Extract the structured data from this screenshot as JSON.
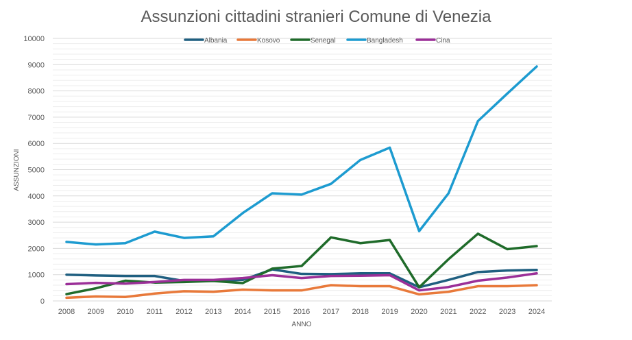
{
  "chart_data": {
    "type": "line",
    "title": "Assunzioni cittadini stranieri Comune di Venezia",
    "xlabel": "ANNO",
    "ylabel": "ASSUNZIONI",
    "ylim": [
      0,
      10000
    ],
    "y_major_step": 1000,
    "y_minor_step": 200,
    "grid": true,
    "legend_position": "top",
    "y_ticks": [
      "0",
      "1000",
      "2000",
      "3000",
      "4000",
      "5000",
      "6000",
      "7000",
      "8000",
      "9000",
      "10000"
    ],
    "categories": [
      "2008",
      "2009",
      "2010",
      "2011",
      "2012",
      "2013",
      "2014",
      "2015",
      "2016",
      "2017",
      "2018",
      "2019",
      "2020",
      "2021",
      "2022",
      "2023",
      "2024"
    ],
    "series": [
      {
        "name": "Albania",
        "color": "#1f5f80",
        "values": [
          1000,
          970,
          950,
          950,
          760,
          770,
          800,
          1200,
          1030,
          1020,
          1050,
          1050,
          520,
          800,
          1100,
          1160,
          1180
        ]
      },
      {
        "name": "Kosovo",
        "color": "#e8793a",
        "values": [
          120,
          170,
          150,
          280,
          370,
          350,
          430,
          400,
          400,
          600,
          560,
          560,
          250,
          350,
          560,
          560,
          600
        ]
      },
      {
        "name": "Senegal",
        "color": "#1f6b2a",
        "values": [
          260,
          480,
          770,
          700,
          720,
          760,
          680,
          1230,
          1330,
          2420,
          2200,
          2320,
          520,
          1590,
          2560,
          1970,
          2090
        ]
      },
      {
        "name": "Bangladesh",
        "color": "#1d9bd0",
        "values": [
          2250,
          2150,
          2200,
          2640,
          2400,
          2460,
          3350,
          4100,
          4050,
          4460,
          5370,
          5840,
          2660,
          4100,
          6850,
          7900,
          8930
        ]
      },
      {
        "name": "Cina",
        "color": "#9b2f98",
        "values": [
          640,
          690,
          660,
          720,
          800,
          800,
          870,
          980,
          870,
          950,
          960,
          980,
          400,
          530,
          770,
          890,
          1050
        ]
      }
    ]
  }
}
